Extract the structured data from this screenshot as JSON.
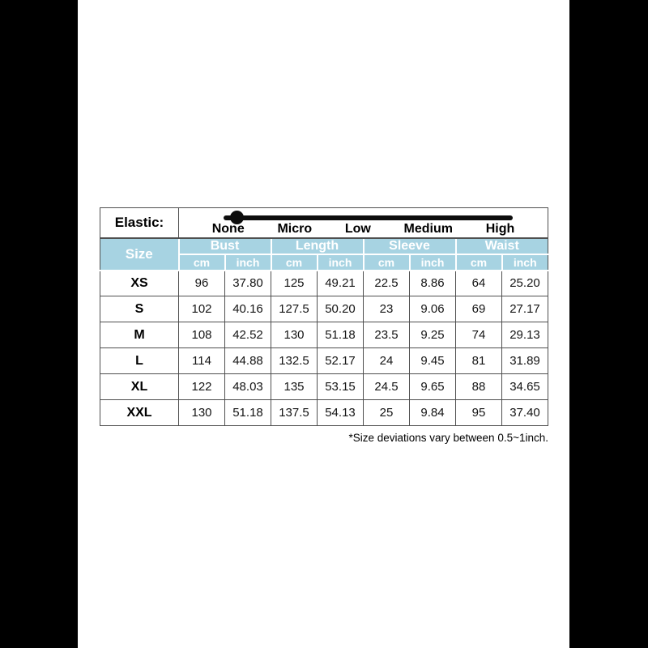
{
  "elastic": {
    "label": "Elastic:",
    "levels": [
      "None",
      "Micro",
      "Low",
      "Medium",
      "High"
    ],
    "selected_level": "None"
  },
  "table": {
    "size_header": "Size",
    "measurement_groups": [
      "Bust",
      "Length",
      "Sleeve",
      "Waist"
    ],
    "unit_headers": [
      "cm",
      "inch"
    ],
    "rows": [
      {
        "size": "XS",
        "values": [
          "96",
          "37.80",
          "125",
          "49.21",
          "22.5",
          "8.86",
          "64",
          "25.20"
        ]
      },
      {
        "size": "S",
        "values": [
          "102",
          "40.16",
          "127.5",
          "50.20",
          "23",
          "9.06",
          "69",
          "27.17"
        ]
      },
      {
        "size": "M",
        "values": [
          "108",
          "42.52",
          "130",
          "51.18",
          "23.5",
          "9.25",
          "74",
          "29.13"
        ]
      },
      {
        "size": "L",
        "values": [
          "114",
          "44.88",
          "132.5",
          "52.17",
          "24",
          "9.45",
          "81",
          "31.89"
        ]
      },
      {
        "size": "XL",
        "values": [
          "122",
          "48.03",
          "135",
          "53.15",
          "24.5",
          "9.65",
          "88",
          "34.65"
        ]
      },
      {
        "size": "XXL",
        "values": [
          "130",
          "51.18",
          "137.5",
          "54.13",
          "25",
          "9.84",
          "95",
          "37.40"
        ]
      }
    ]
  },
  "footnote": "*Size deviations vary between 0.5~1inch.",
  "colors": {
    "header_bg": "#a7d3e2",
    "header_text": "#ffffff",
    "body_border": "#4f4f4f",
    "pillarbox": "#000000",
    "slider": "#0d0d0d"
  },
  "chart_data": {
    "type": "table",
    "title": "Garment size chart",
    "columns": [
      "Size",
      "Bust cm",
      "Bust inch",
      "Length cm",
      "Length inch",
      "Sleeve cm",
      "Sleeve inch",
      "Waist cm",
      "Waist inch"
    ],
    "rows": [
      [
        "XS",
        "96",
        "37.80",
        "125",
        "49.21",
        "22.5",
        "8.86",
        "64",
        "25.20"
      ],
      [
        "S",
        "102",
        "40.16",
        "127.5",
        "50.20",
        "23",
        "9.06",
        "69",
        "27.17"
      ],
      [
        "M",
        "108",
        "42.52",
        "130",
        "51.18",
        "23.5",
        "9.25",
        "74",
        "29.13"
      ],
      [
        "L",
        "114",
        "44.88",
        "132.5",
        "52.17",
        "24",
        "9.45",
        "81",
        "31.89"
      ],
      [
        "XL",
        "122",
        "48.03",
        "135",
        "53.15",
        "24.5",
        "9.65",
        "88",
        "34.65"
      ],
      [
        "XXL",
        "130",
        "51.18",
        "137.5",
        "54.13",
        "25",
        "9.84",
        "95",
        "37.40"
      ]
    ],
    "elastic_scale": {
      "label": "Elastic:",
      "levels": [
        "None",
        "Micro",
        "Low",
        "Medium",
        "High"
      ],
      "indicator_at": "None"
    },
    "footnote": "*Size deviations vary between 0.5~1inch.",
    "legend_position": "none",
    "grid": true
  }
}
